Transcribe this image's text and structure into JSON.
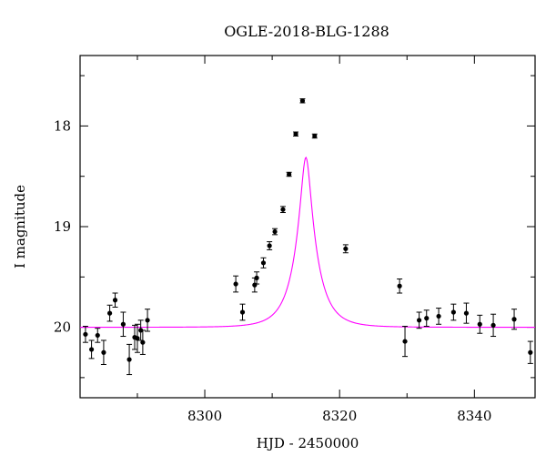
{
  "chart_data": {
    "type": "scatter",
    "title": "OGLE-2018-BLG-1288",
    "xlabel": "HJD - 2450000",
    "ylabel": "I magnitude",
    "xlim": [
      8281.5,
      8349
    ],
    "ylim": [
      20.7,
      17.3
    ],
    "y_inverted": true,
    "x_major_ticks": [
      8300,
      8320,
      8340
    ],
    "x_minor_ticks": [
      8290,
      8310,
      8330
    ],
    "y_major_ticks": [
      18,
      19,
      20
    ],
    "y_minor_ticks": [
      17.5,
      18.5,
      19.5,
      20.5
    ],
    "grid": false,
    "series": [
      {
        "kind": "points",
        "color": "#000000",
        "points": [
          {
            "x": 8282.3,
            "y": 20.07,
            "err": 0.08
          },
          {
            "x": 8283.2,
            "y": 20.22,
            "err": 0.09
          },
          {
            "x": 8284.1,
            "y": 20.08,
            "err": 0.07
          },
          {
            "x": 8285.0,
            "y": 20.25,
            "err": 0.12
          },
          {
            "x": 8285.9,
            "y": 19.86,
            "err": 0.08
          },
          {
            "x": 8286.7,
            "y": 19.73,
            "err": 0.07
          },
          {
            "x": 8287.9,
            "y": 19.97,
            "err": 0.12
          },
          {
            "x": 8288.8,
            "y": 20.32,
            "err": 0.15
          },
          {
            "x": 8289.6,
            "y": 20.1,
            "err": 0.12
          },
          {
            "x": 8290.0,
            "y": 20.11,
            "err": 0.14
          },
          {
            "x": 8290.5,
            "y": 20.03,
            "err": 0.1
          },
          {
            "x": 8290.8,
            "y": 20.15,
            "err": 0.12
          },
          {
            "x": 8291.5,
            "y": 19.93,
            "err": 0.11
          },
          {
            "x": 8304.6,
            "y": 19.57,
            "err": 0.08
          },
          {
            "x": 8305.6,
            "y": 19.85,
            "err": 0.08
          },
          {
            "x": 8307.4,
            "y": 19.58,
            "err": 0.07
          },
          {
            "x": 8307.7,
            "y": 19.51,
            "err": 0.06
          },
          {
            "x": 8308.7,
            "y": 19.36,
            "err": 0.05
          },
          {
            "x": 8309.6,
            "y": 19.19,
            "err": 0.04
          },
          {
            "x": 8310.4,
            "y": 19.05,
            "err": 0.03
          },
          {
            "x": 8311.6,
            "y": 18.83,
            "err": 0.03
          },
          {
            "x": 8312.5,
            "y": 18.48,
            "err": 0.02
          },
          {
            "x": 8313.5,
            "y": 18.08,
            "err": 0.02
          },
          {
            "x": 8314.5,
            "y": 17.75,
            "err": 0.02
          },
          {
            "x": 8316.3,
            "y": 18.1,
            "err": 0.02
          },
          {
            "x": 8320.9,
            "y": 19.22,
            "err": 0.04
          },
          {
            "x": 8328.9,
            "y": 19.59,
            "err": 0.07
          },
          {
            "x": 8329.7,
            "y": 20.14,
            "err": 0.15
          },
          {
            "x": 8331.8,
            "y": 19.93,
            "err": 0.08
          },
          {
            "x": 8332.9,
            "y": 19.91,
            "err": 0.08
          },
          {
            "x": 8334.7,
            "y": 19.89,
            "err": 0.08
          },
          {
            "x": 8336.9,
            "y": 19.85,
            "err": 0.08
          },
          {
            "x": 8338.8,
            "y": 19.86,
            "err": 0.1
          },
          {
            "x": 8340.8,
            "y": 19.97,
            "err": 0.09
          },
          {
            "x": 8342.8,
            "y": 19.98,
            "err": 0.11
          },
          {
            "x": 8345.9,
            "y": 19.92,
            "err": 0.1
          },
          {
            "x": 8348.3,
            "y": 20.25,
            "err": 0.11
          }
        ]
      },
      {
        "kind": "model",
        "color": "#ff00ff",
        "model": {
          "t0": 8315.0,
          "tE": 3.2,
          "u0": 0.215,
          "baseline": 20.0
        }
      }
    ]
  }
}
